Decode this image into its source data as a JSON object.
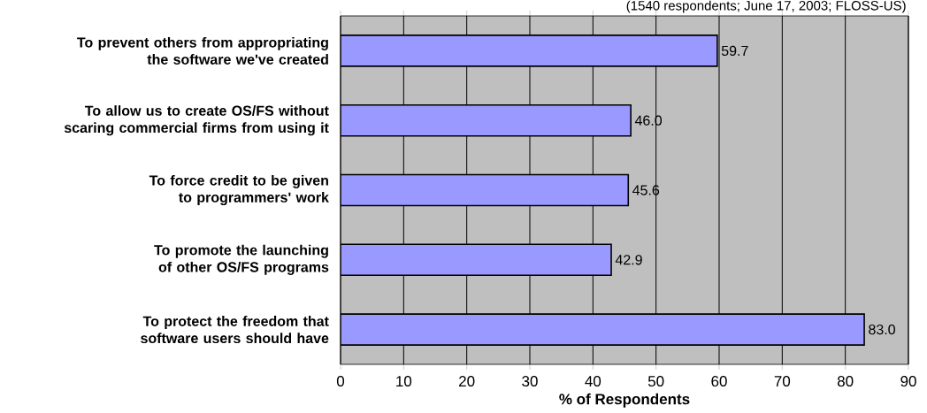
{
  "chart_data": {
    "type": "bar",
    "orientation": "horizontal",
    "categories": [
      "To prevent others from appropriating the software we've created",
      "To allow us to create OS/FS without scaring commercial firms from using it",
      "To force credit to be given to programmers' work",
      "To promote the launching of other OS/FS programs",
      "To protect the freedom that software users should have"
    ],
    "values": [
      59.7,
      46.0,
      45.6,
      42.9,
      83.0
    ],
    "value_labels": [
      "59.7",
      "46.0",
      "45.6",
      "42.9",
      "83.0"
    ],
    "color": "#9999ff",
    "xlabel": "% of Respondents",
    "annotations": [
      "(1540 respondents; June 17, 2003; FLOSS-US)"
    ],
    "xlim": [
      0,
      90
    ],
    "xticks": [
      0,
      10,
      20,
      30,
      40,
      50,
      60,
      70,
      80,
      90
    ],
    "grid": "x"
  }
}
